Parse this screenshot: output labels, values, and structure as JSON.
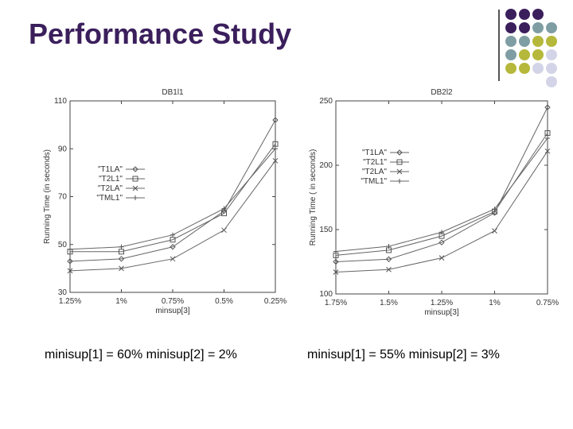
{
  "slide": {
    "title": "Performance Study",
    "palette": [
      "#3b1f5c",
      "#7f9ea3",
      "#b5b83a",
      "#d4d4e8"
    ]
  },
  "captions": [
    "minisup[1] = 60%  minisup[2] = 2%",
    "minisup[1] = 55%  minisup[2] = 3%"
  ],
  "chart_data": [
    {
      "type": "line",
      "title": "DB1l1",
      "xlabel": "minsup[3]",
      "ylabel": "Running Time (in seconds)",
      "categories": [
        "1.25%",
        "1%",
        "0.75%",
        "0.5%",
        "0.25%"
      ],
      "ylim": [
        30,
        110
      ],
      "yticks": [
        30,
        50,
        70,
        90,
        110
      ],
      "legend": "center-left",
      "grid": false,
      "series": [
        {
          "name": "\"T1LA\"",
          "marker": "diamond",
          "values": [
            43,
            44,
            49,
            64,
            102
          ]
        },
        {
          "name": "\"T2L1\"",
          "marker": "square",
          "values": [
            47,
            47,
            52,
            63,
            92
          ]
        },
        {
          "name": "\"T2LA\"",
          "marker": "x",
          "values": [
            39,
            40,
            44,
            56,
            85
          ]
        },
        {
          "name": "\"TML1\"",
          "marker": "plus",
          "values": [
            48,
            49,
            54,
            65,
            90
          ]
        }
      ]
    },
    {
      "type": "line",
      "title": "DB2l2",
      "xlabel": "minsup[3]",
      "ylabel": "Running Time ( in seconds)",
      "categories": [
        "1.75%",
        "1.5%",
        "1.25%",
        "1%",
        "0.75%"
      ],
      "ylim": [
        100,
        250
      ],
      "yticks": [
        100,
        150,
        200,
        250
      ],
      "legend": "center-left",
      "grid": false,
      "series": [
        {
          "name": "\"T1LA\"",
          "marker": "diamond",
          "values": [
            125,
            127,
            140,
            163,
            245
          ]
        },
        {
          "name": "\"T2L1\"",
          "marker": "square",
          "values": [
            130,
            134,
            145,
            164,
            225
          ]
        },
        {
          "name": "\"T2LA\"",
          "marker": "x",
          "values": [
            117,
            119,
            128,
            149,
            211
          ]
        },
        {
          "name": "\"TML1\"",
          "marker": "plus",
          "values": [
            133,
            137,
            148,
            166,
            221
          ]
        }
      ]
    }
  ]
}
